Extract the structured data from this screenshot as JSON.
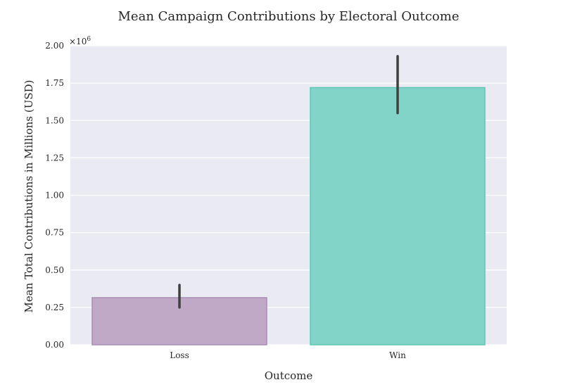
{
  "chart_data": {
    "type": "bar",
    "title": "Mean Campaign Contributions by Electoral Outcome",
    "xlabel": "Outcome",
    "ylabel": "Mean Total Contributions in Millions (USD)",
    "categories": [
      "Loss",
      "Win"
    ],
    "values": [
      315000,
      1720000
    ],
    "error_low": [
      250000,
      1550000
    ],
    "error_high": [
      400000,
      1930000
    ],
    "ylim": [
      0,
      2000000
    ],
    "yticks": [
      0,
      250000,
      500000,
      750000,
      1000000,
      1250000,
      1500000,
      1750000,
      2000000
    ],
    "ytick_labels": [
      "0.00",
      "0.25",
      "0.50",
      "0.75",
      "1.00",
      "1.25",
      "1.50",
      "1.75",
      "2.00"
    ],
    "offset_label_base": "×10",
    "offset_label_exp": "6",
    "grid": true,
    "colors": {
      "bars": [
        "#c0a9c7",
        "#82d4c8"
      ],
      "bar_edges": [
        "#a88db3",
        "#5cc7b5"
      ],
      "plot_background": "#eaeaf2",
      "grid": "#ffffff",
      "error_bar": "#3f3f3f"
    }
  }
}
